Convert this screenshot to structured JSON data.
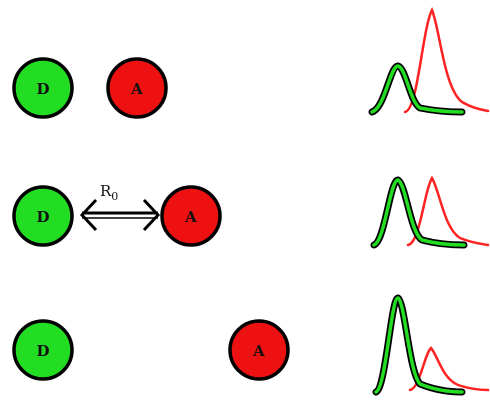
{
  "diagram": {
    "donor_color": "#22dd22",
    "acceptor_color": "#ee1111",
    "outline_color": "#000000",
    "rows": [
      {
        "donor": {
          "label": "D"
        },
        "acceptor": {
          "label": "A"
        },
        "distance_label": "",
        "spectrum": {
          "donor_peak_level": 0.4,
          "acceptor_peak_level": 0.9
        }
      },
      {
        "donor": {
          "label": "D"
        },
        "acceptor": {
          "label": "A"
        },
        "distance_label": "R",
        "distance_label_sub": "0",
        "spectrum": {
          "donor_peak_level": 0.7,
          "acceptor_peak_level": 0.55
        }
      },
      {
        "donor": {
          "label": "D"
        },
        "acceptor": {
          "label": "A"
        },
        "distance_label": "",
        "spectrum": {
          "donor_peak_level": 0.95,
          "acceptor_peak_level": 0.4
        }
      }
    ]
  }
}
